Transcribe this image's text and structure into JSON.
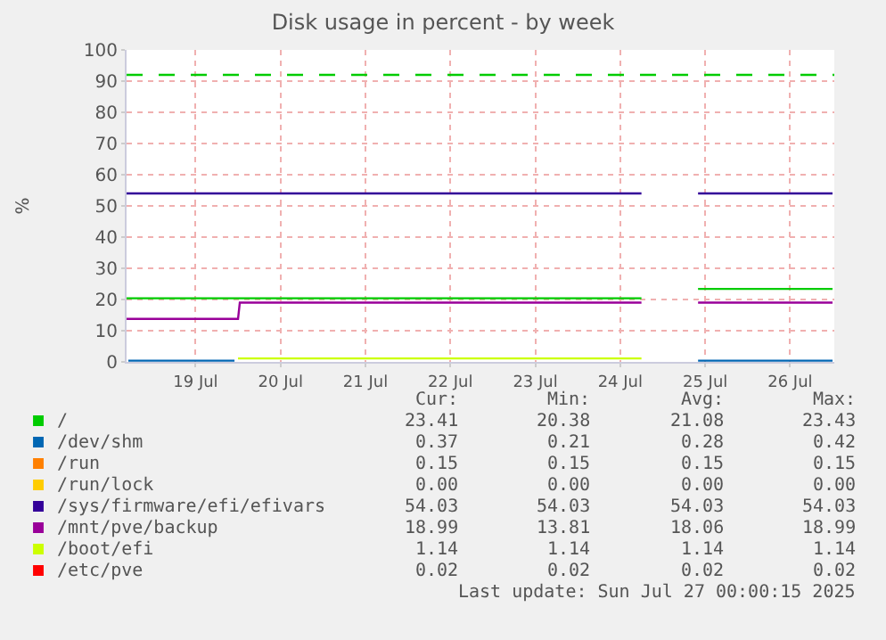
{
  "chart_data": {
    "type": "line",
    "title": "Disk usage in percent - by week",
    "ylabel": "%",
    "x": [
      "2025-07-18T16:30",
      "2025-07-20T00:00",
      "2025-07-20T00:30",
      "2025-07-24T18:00",
      "2025-07-25T00:00",
      "2025-07-25T10:00",
      "2025-07-27T00:00"
    ],
    "series": [
      {
        "name": "/",
        "color": "#00cc00",
        "values": [
          20.4,
          20.4,
          20.4,
          20.4,
          null,
          23.4,
          23.4
        ]
      },
      {
        "name": "/dev/shm",
        "color": "#0066b3",
        "x": [
          "2025-07-18T17:00",
          "2025-07-19T23:00",
          "2025-07-22T00:00",
          "2025-07-25T10:00",
          "2025-07-27T00:00"
        ],
        "values": [
          0.4,
          0.4,
          null,
          0.4,
          0.4
        ]
      },
      {
        "name": "/run",
        "color": "#ff8000",
        "values": [
          null,
          null,
          null,
          null,
          null,
          null,
          null
        ]
      },
      {
        "name": "/run/lock",
        "color": "#ffcc00",
        "values": [
          null,
          null,
          null,
          null,
          null,
          null,
          null
        ]
      },
      {
        "name": "/sys/firmware/efi/efivars",
        "color": "#330099",
        "values": [
          54.0,
          54.0,
          54.0,
          54.0,
          null,
          54.0,
          54.0
        ]
      },
      {
        "name": "/mnt/pve/backup",
        "color": "#990099",
        "values": [
          13.8,
          13.8,
          19.0,
          19.0,
          null,
          19.0,
          19.0
        ]
      },
      {
        "name": "/boot/efi",
        "color": "#ccff00",
        "x": [
          "2025-07-20T00:00",
          "2025-07-24T18:00"
        ],
        "values": [
          1.1,
          1.1
        ]
      },
      {
        "name": "/etc/pve",
        "color": "#ff0000",
        "values": [
          null,
          null,
          null,
          null,
          null,
          null,
          null
        ]
      }
    ],
    "xlim": [
      "2025-07-18T16:30",
      "2025-07-27T00:30"
    ],
    "xticks": [
      {
        "value": "2025-07-19T12:00",
        "label": "19 Jul"
      },
      {
        "value": "2025-07-20T12:00",
        "label": "20 Jul"
      },
      {
        "value": "2025-07-21T12:00",
        "label": "21 Jul"
      },
      {
        "value": "2025-07-22T12:00",
        "label": "22 Jul"
      },
      {
        "value": "2025-07-23T12:00",
        "label": "23 Jul"
      },
      {
        "value": "2025-07-24T12:00",
        "label": "24 Jul"
      },
      {
        "value": "2025-07-25T12:00",
        "label": "25 Jul"
      },
      {
        "value": "2025-07-26T12:00",
        "label": "26 Jul"
      }
    ],
    "ylim": [
      0,
      100
    ],
    "yticks": [
      0,
      10,
      20,
      30,
      40,
      50,
      60,
      70,
      80,
      90,
      100
    ],
    "ref_lines": [
      {
        "axis": "y",
        "value": 92,
        "color": "#00cc00",
        "line_style": "dashed"
      }
    ],
    "grid": true,
    "legend": "bottom",
    "marker": "none",
    "line_style": "solid",
    "annotations": [
      "Cur:",
      "Min:",
      "Avg:",
      "Max:",
      "23.41",
      "20.38",
      "21.08",
      "23.43",
      "0.37",
      "0.21",
      "0.28",
      "0.42",
      "0.15",
      "0.15",
      "0.15",
      "0.15",
      "0.00",
      "0.00",
      "0.00",
      "0.00",
      "54.03",
      "54.03",
      "54.03",
      "54.03",
      "18.99",
      "13.81",
      "18.06",
      "18.99",
      "1.14",
      "1.14",
      "1.14",
      "1.14",
      "0.02",
      "0.02",
      "0.02",
      "0.02",
      "Last update: Sun Jul 27 00:00:15 2025"
    ]
  }
}
